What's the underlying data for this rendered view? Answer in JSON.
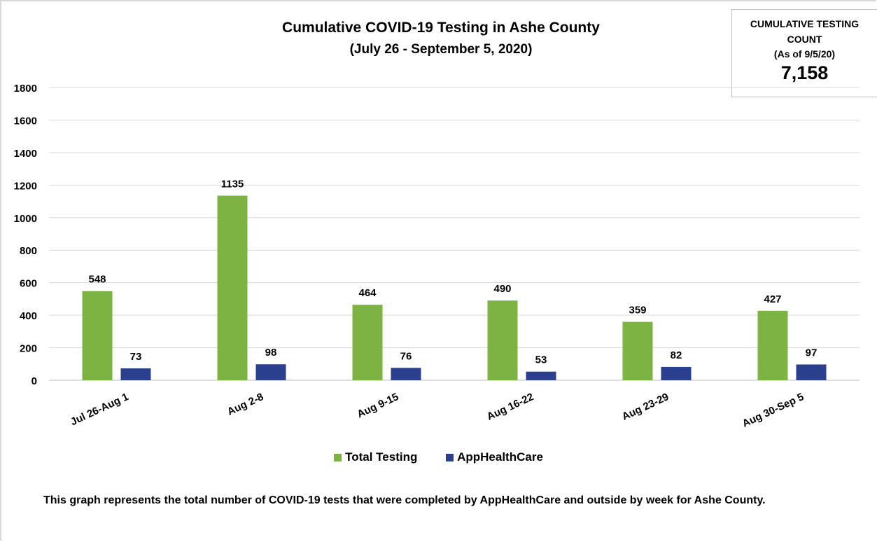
{
  "chart_data": {
    "type": "bar",
    "title": "Cumulative COVID-19 Testing in Ashe County",
    "subtitle": "(July 26 - September 5, 2020)",
    "categories": [
      "Jul 26-Aug 1",
      "Aug 2-8",
      "Aug 9-15",
      "Aug 16-22",
      "Aug 23-29",
      "Aug 30-Sep 5"
    ],
    "series": [
      {
        "name": "Total Testing",
        "color": "#7cb342",
        "values": [
          548,
          1135,
          464,
          490,
          359,
          427
        ]
      },
      {
        "name": "AppHealthCare",
        "color": "#2b3f8f",
        "values": [
          73,
          98,
          76,
          53,
          82,
          97
        ]
      }
    ],
    "ylim": [
      0,
      1800
    ],
    "yticks": [
      0,
      200,
      400,
      600,
      800,
      1000,
      1200,
      1400,
      1600,
      1800
    ],
    "grid": true,
    "legend_position": "bottom"
  },
  "count_box": {
    "label": "CUMULATIVE TESTING COUNT",
    "as_of": "(As of 9/5/20)",
    "value": "7,158"
  },
  "caption": "This graph represents the total number of COVID-19 tests that were completed by AppHealthCare and outside by week for Ashe County."
}
